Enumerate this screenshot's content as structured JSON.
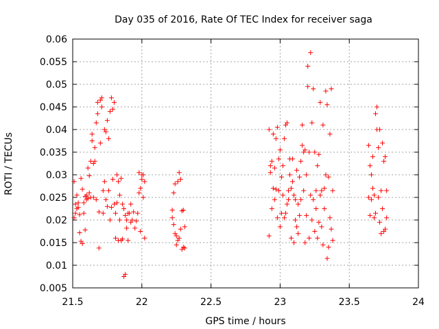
{
  "chart_data": {
    "type": "scatter",
    "title": "Day 035 of 2016, Rate Of TEC Index for receiver saga",
    "xlabel": "GPS time / hours",
    "ylabel": "ROTI / TECUs",
    "xlim": [
      21.5,
      24
    ],
    "ylim": [
      0.005,
      0.06
    ],
    "xticks": [
      "21.5",
      "22",
      "22.5",
      "23",
      "23.5",
      "24"
    ],
    "yticks": [
      "0.005",
      "0.01",
      "0.015",
      "0.02",
      "0.025",
      "0.03",
      "0.035",
      "0.04",
      "0.045",
      "0.05",
      "0.055",
      "0.06"
    ],
    "grid": true,
    "marker": "plus",
    "color": "#ff0000",
    "series": [
      {
        "name": "ROTI",
        "points": [
          [
            21.51,
            0.0285
          ],
          [
            21.51,
            0.0205
          ],
          [
            21.52,
            0.0235
          ],
          [
            21.52,
            0.0215
          ],
          [
            21.53,
            0.0225
          ],
          [
            21.53,
            0.0255
          ],
          [
            21.54,
            0.0238
          ],
          [
            21.54,
            0.0228
          ],
          [
            21.55,
            0.0212
          ],
          [
            21.55,
            0.0172
          ],
          [
            21.56,
            0.0153
          ],
          [
            21.56,
            0.0292
          ],
          [
            21.57,
            0.0148
          ],
          [
            21.57,
            0.0268
          ],
          [
            21.58,
            0.0238
          ],
          [
            21.58,
            0.0215
          ],
          [
            21.59,
            0.0252
          ],
          [
            21.59,
            0.0178
          ],
          [
            21.6,
            0.0245
          ],
          [
            21.6,
            0.0255
          ],
          [
            21.61,
            0.0315
          ],
          [
            21.61,
            0.0248
          ],
          [
            21.62,
            0.0298
          ],
          [
            21.62,
            0.026
          ],
          [
            21.63,
            0.033
          ],
          [
            21.63,
            0.025
          ],
          [
            21.64,
            0.0375
          ],
          [
            21.64,
            0.039
          ],
          [
            21.65,
            0.0325
          ],
          [
            21.65,
            0.025
          ],
          [
            21.66,
            0.033
          ],
          [
            21.66,
            0.036
          ],
          [
            21.67,
            0.0415
          ],
          [
            21.67,
            0.0245
          ],
          [
            21.68,
            0.0435
          ],
          [
            21.68,
            0.046
          ],
          [
            21.69,
            0.0138
          ],
          [
            21.69,
            0.0218
          ],
          [
            21.7,
            0.0465
          ],
          [
            21.7,
            0.037
          ],
          [
            21.71,
            0.047
          ],
          [
            21.71,
            0.045
          ],
          [
            21.72,
            0.0265
          ],
          [
            21.72,
            0.0215
          ],
          [
            21.73,
            0.04
          ],
          [
            21.73,
            0.0285
          ],
          [
            21.74,
            0.0395
          ],
          [
            21.74,
            0.0245
          ],
          [
            21.75,
            0.042
          ],
          [
            21.75,
            0.023
          ],
          [
            21.76,
            0.0265
          ],
          [
            21.76,
            0.038
          ],
          [
            21.77,
            0.044
          ],
          [
            21.77,
            0.02
          ],
          [
            21.78,
            0.047
          ],
          [
            21.78,
            0.0228
          ],
          [
            21.79,
            0.0445
          ],
          [
            21.79,
            0.029
          ],
          [
            21.8,
            0.046
          ],
          [
            21.8,
            0.0235
          ],
          [
            21.81,
            0.016
          ],
          [
            21.81,
            0.0215
          ],
          [
            21.82,
            0.0238
          ],
          [
            21.82,
            0.03
          ],
          [
            21.83,
            0.0155
          ],
          [
            21.83,
            0.0285
          ],
          [
            21.84,
            0.0255
          ],
          [
            21.84,
            0.02
          ],
          [
            21.85,
            0.0292
          ],
          [
            21.85,
            0.0155
          ],
          [
            21.86,
            0.0235
          ],
          [
            21.86,
            0.0158
          ],
          [
            21.87,
            0.0225
          ],
          [
            21.87,
            0.0075
          ],
          [
            21.88,
            0.008
          ],
          [
            21.88,
            0.021
          ],
          [
            21.89,
            0.02
          ],
          [
            21.89,
            0.0182
          ],
          [
            21.9,
            0.0155
          ],
          [
            21.9,
            0.0215
          ],
          [
            21.91,
            0.0215
          ],
          [
            21.92,
            0.0235
          ],
          [
            21.92,
            0.0195
          ],
          [
            21.93,
            0.02
          ],
          [
            21.94,
            0.0218
          ],
          [
            21.95,
            0.0182
          ],
          [
            21.96,
            0.0198
          ],
          [
            21.97,
            0.0215
          ],
          [
            21.98,
            0.026
          ],
          [
            21.98,
            0.0305
          ],
          [
            21.99,
            0.027
          ],
          [
            21.99,
            0.0175
          ],
          [
            22.0,
            0.029
          ],
          [
            22.0,
            0.03
          ],
          [
            22.01,
            0.025
          ],
          [
            22.01,
            0.03
          ],
          [
            22.02,
            0.0285
          ],
          [
            22.02,
            0.016
          ],
          [
            22.22,
            0.0205
          ],
          [
            22.22,
            0.0222
          ],
          [
            22.23,
            0.026
          ],
          [
            22.23,
            0.019
          ],
          [
            22.24,
            0.017
          ],
          [
            22.24,
            0.028
          ],
          [
            22.25,
            0.0145
          ],
          [
            22.25,
            0.0165
          ],
          [
            22.26,
            0.0285
          ],
          [
            22.26,
            0.0155
          ],
          [
            22.27,
            0.0305
          ],
          [
            22.27,
            0.016
          ],
          [
            22.28,
            0.029
          ],
          [
            22.28,
            0.018
          ],
          [
            22.29,
            0.022
          ],
          [
            22.29,
            0.0135
          ],
          [
            22.3,
            0.0222
          ],
          [
            22.3,
            0.014
          ],
          [
            22.31,
            0.0185
          ],
          [
            22.31,
            0.0138
          ],
          [
            22.92,
            0.0165
          ],
          [
            22.92,
            0.04
          ],
          [
            22.93,
            0.0305
          ],
          [
            22.93,
            0.032
          ],
          [
            22.94,
            0.033
          ],
          [
            22.94,
            0.0225
          ],
          [
            22.95,
            0.039
          ],
          [
            22.95,
            0.027
          ],
          [
            22.96,
            0.0315
          ],
          [
            22.96,
            0.0245
          ],
          [
            22.97,
            0.038
          ],
          [
            22.97,
            0.0268
          ],
          [
            22.98,
            0.0405
          ],
          [
            22.98,
            0.0205
          ],
          [
            22.99,
            0.0335
          ],
          [
            22.99,
            0.0265
          ],
          [
            23.0,
            0.0355
          ],
          [
            23.0,
            0.0185
          ],
          [
            23.01,
            0.0295
          ],
          [
            23.01,
            0.0215
          ],
          [
            23.02,
            0.032
          ],
          [
            23.02,
            0.0255
          ],
          [
            23.03,
            0.038
          ],
          [
            23.03,
            0.0205
          ],
          [
            23.04,
            0.041
          ],
          [
            23.04,
            0.0215
          ],
          [
            23.05,
            0.0415
          ],
          [
            23.05,
            0.0235
          ],
          [
            23.06,
            0.0265
          ],
          [
            23.06,
            0.0245
          ],
          [
            23.07,
            0.03
          ],
          [
            23.07,
            0.0335
          ],
          [
            23.08,
            0.027
          ],
          [
            23.08,
            0.016
          ],
          [
            23.09,
            0.0285
          ],
          [
            23.09,
            0.0335
          ],
          [
            23.1,
            0.0255
          ],
          [
            23.1,
            0.015
          ],
          [
            23.11,
            0.02
          ],
          [
            23.11,
            0.0245
          ],
          [
            23.12,
            0.031
          ],
          [
            23.12,
            0.0185
          ],
          [
            23.13,
            0.0235
          ],
          [
            23.13,
            0.017
          ],
          [
            23.14,
            0.0295
          ],
          [
            23.14,
            0.021
          ],
          [
            23.15,
            0.033
          ],
          [
            23.15,
            0.0245
          ],
          [
            23.16,
            0.0365
          ],
          [
            23.16,
            0.041
          ],
          [
            23.17,
            0.035
          ],
          [
            23.17,
            0.0265
          ],
          [
            23.18,
            0.0355
          ],
          [
            23.18,
            0.015
          ],
          [
            23.19,
            0.03
          ],
          [
            23.19,
            0.021
          ],
          [
            23.2,
            0.0495
          ],
          [
            23.2,
            0.054
          ],
          [
            23.21,
            0.035
          ],
          [
            23.21,
            0.016
          ],
          [
            23.22,
            0.057
          ],
          [
            23.22,
            0.0255
          ],
          [
            23.23,
            0.0415
          ],
          [
            23.23,
            0.02
          ],
          [
            23.24,
            0.049
          ],
          [
            23.24,
            0.0245
          ],
          [
            23.25,
            0.035
          ],
          [
            23.25,
            0.0175
          ],
          [
            23.26,
            0.0265
          ],
          [
            23.26,
            0.0225
          ],
          [
            23.27,
            0.032
          ],
          [
            23.27,
            0.016
          ],
          [
            23.28,
            0.0345
          ],
          [
            23.28,
            0.0195
          ],
          [
            23.29,
            0.046
          ],
          [
            23.29,
            0.0255
          ],
          [
            23.3,
            0.0265
          ],
          [
            23.3,
            0.0185
          ],
          [
            23.31,
            0.041
          ],
          [
            23.31,
            0.0145
          ],
          [
            23.32,
            0.027
          ],
          [
            23.32,
            0.0225
          ],
          [
            23.33,
            0.0485
          ],
          [
            23.33,
            0.03
          ],
          [
            23.34,
            0.0455
          ],
          [
            23.34,
            0.0115
          ],
          [
            23.35,
            0.0295
          ],
          [
            23.35,
            0.014
          ],
          [
            23.36,
            0.039
          ],
          [
            23.36,
            0.0205
          ],
          [
            23.37,
            0.049
          ],
          [
            23.37,
            0.018
          ],
          [
            23.38,
            0.0265
          ],
          [
            23.38,
            0.0155
          ],
          [
            23.64,
            0.0365
          ],
          [
            23.64,
            0.025
          ],
          [
            23.65,
            0.021
          ],
          [
            23.65,
            0.032
          ],
          [
            23.66,
            0.0245
          ],
          [
            23.66,
            0.03
          ],
          [
            23.67,
            0.027
          ],
          [
            23.67,
            0.034
          ],
          [
            23.68,
            0.0205
          ],
          [
            23.68,
            0.0255
          ],
          [
            23.69,
            0.0435
          ],
          [
            23.69,
            0.0215
          ],
          [
            23.7,
            0.045
          ],
          [
            23.7,
            0.04
          ],
          [
            23.71,
            0.036
          ],
          [
            23.71,
            0.025
          ],
          [
            23.72,
            0.04
          ],
          [
            23.72,
            0.0195
          ],
          [
            23.73,
            0.0265
          ],
          [
            23.73,
            0.017
          ],
          [
            23.74,
            0.037
          ],
          [
            23.74,
            0.0225
          ],
          [
            23.75,
            0.033
          ],
          [
            23.75,
            0.0175
          ],
          [
            23.76,
            0.034
          ],
          [
            23.76,
            0.018
          ],
          [
            23.77,
            0.0205
          ],
          [
            23.77,
            0.0265
          ]
        ]
      }
    ]
  }
}
